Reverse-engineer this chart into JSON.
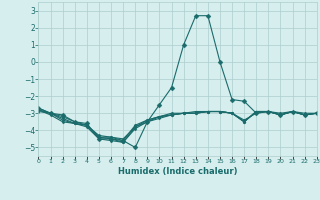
{
  "series": [
    [
      -2.7,
      -3.0,
      -3.1,
      -3.5,
      -3.6,
      -4.5,
      -4.5,
      -4.6,
      -5.0,
      -3.5,
      -2.5,
      -1.5,
      1.0,
      2.7,
      2.7,
      0.0,
      -2.2,
      -2.3,
      -3.0,
      -2.9,
      -3.1,
      -2.9,
      -3.1,
      -3.0
    ],
    [
      -2.8,
      -3.1,
      -3.5,
      -3.6,
      -3.7,
      -4.3,
      -4.4,
      -4.5,
      -3.8,
      -3.4,
      -3.2,
      -3.1,
      -3.0,
      -3.0,
      -2.9,
      -2.9,
      -3.0,
      -3.5,
      -2.9,
      -2.9,
      -3.1,
      -2.9,
      -3.1,
      -3.0
    ],
    [
      -2.9,
      -3.0,
      -3.4,
      -3.6,
      -3.7,
      -4.4,
      -4.5,
      -4.7,
      -3.9,
      -3.5,
      -3.3,
      -3.1,
      -3.0,
      -3.0,
      -2.9,
      -2.9,
      -3.0,
      -3.5,
      -2.9,
      -2.9,
      -3.1,
      -2.9,
      -3.1,
      -3.0
    ],
    [
      -2.7,
      -3.0,
      -3.3,
      -3.6,
      -3.8,
      -4.5,
      -4.6,
      -4.7,
      -3.8,
      -3.5,
      -3.2,
      -3.1,
      -3.0,
      -3.0,
      -2.9,
      -2.9,
      -3.0,
      -3.5,
      -2.9,
      -2.9,
      -3.1,
      -2.9,
      -3.1,
      -3.0
    ],
    [
      -2.8,
      -3.0,
      -3.2,
      -3.5,
      -3.7,
      -4.4,
      -4.4,
      -4.6,
      -3.7,
      -3.4,
      -3.2,
      -3.0,
      -3.0,
      -2.9,
      -2.9,
      -2.9,
      -3.0,
      -3.4,
      -3.0,
      -2.9,
      -3.0,
      -2.9,
      -3.0,
      -3.0
    ]
  ],
  "x": [
    0,
    1,
    2,
    3,
    4,
    5,
    6,
    7,
    8,
    9,
    10,
    11,
    12,
    13,
    14,
    15,
    16,
    17,
    18,
    19,
    20,
    21,
    22,
    23
  ],
  "line_color": "#1a6b6b",
  "marker": "D",
  "marker_size": 2.5,
  "background_color": "#d6eeee",
  "grid_color": "#aecece",
  "xlim": [
    0,
    23
  ],
  "ylim": [
    -5.5,
    3.5
  ],
  "yticks": [
    -5,
    -4,
    -3,
    -2,
    -1,
    0,
    1,
    2,
    3
  ],
  "xtick_labels": [
    "0",
    "1",
    "2",
    "3",
    "4",
    "5",
    "6",
    "7",
    "8",
    "9",
    "10",
    "11",
    "12",
    "13",
    "14",
    "15",
    "16",
    "17",
    "18",
    "19",
    "20",
    "21",
    "22",
    "23"
  ],
  "xlabel": "Humidex (Indice chaleur)",
  "font_color": "#1a6b6b"
}
